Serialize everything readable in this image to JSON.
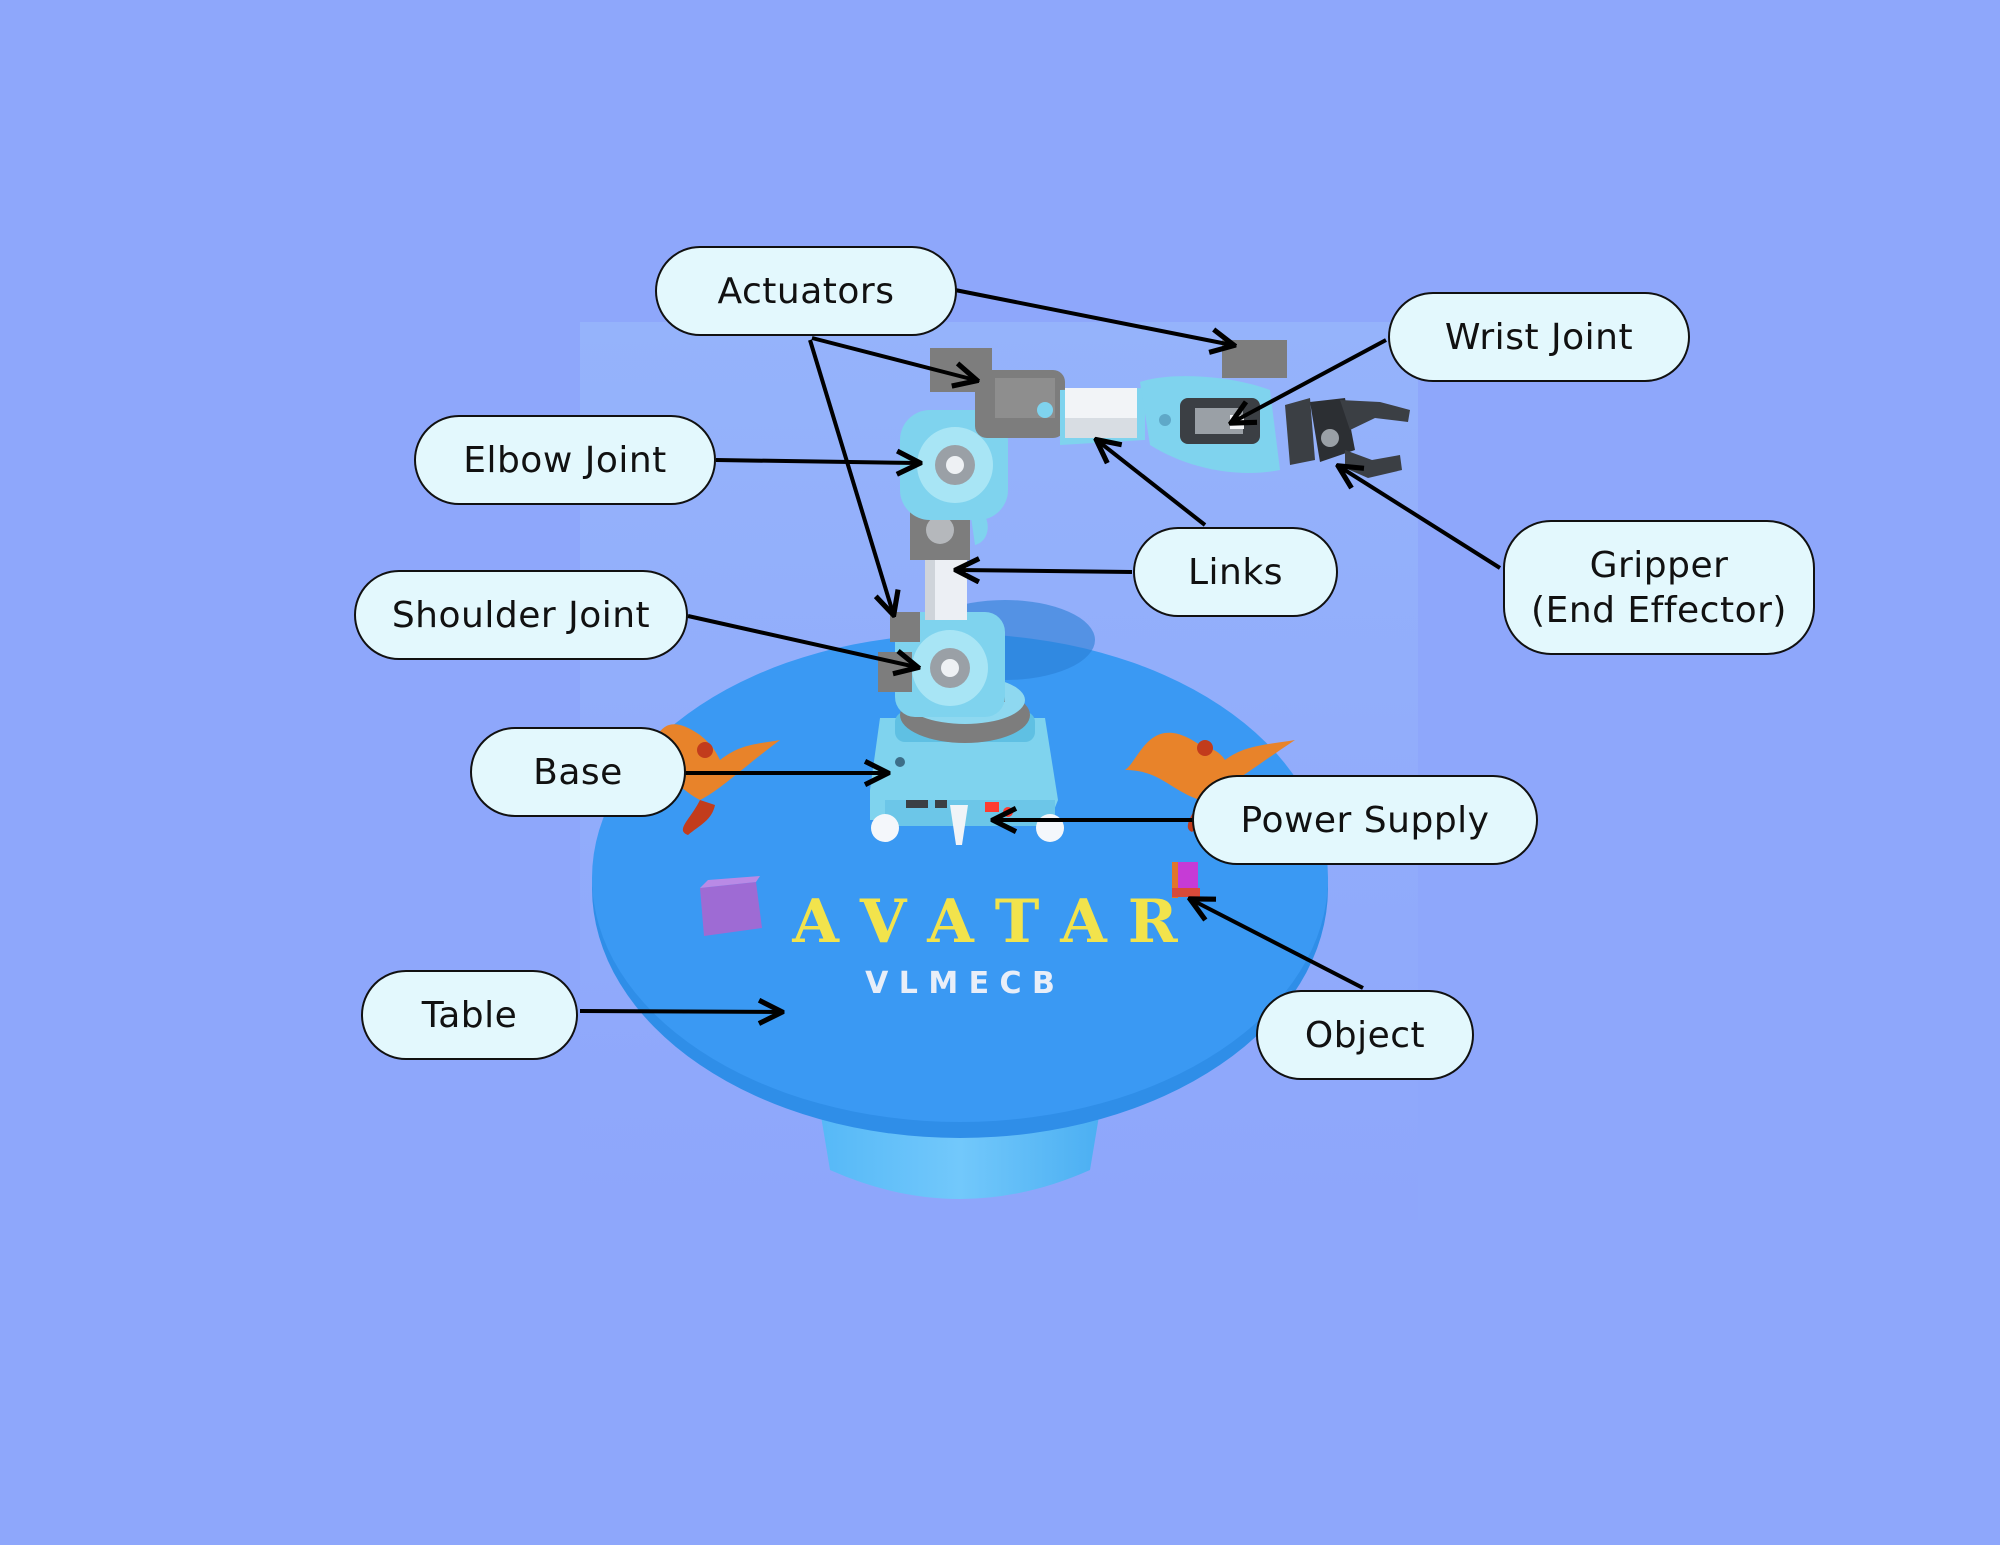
{
  "colors": {
    "background": "#8ea7fb",
    "callout_fill": "#e3f8fd",
    "callout_border": "#111111",
    "table_top": "#3a99f3",
    "robot_body": "#7fd3ee",
    "actuator": "#7d7d7d",
    "brand_text": "#f2e34c",
    "brand_sub": "#e8eef8"
  },
  "labels": {
    "actuators": "Actuators",
    "wrist_joint": "Wrist Joint",
    "elbow_joint": "Elbow Joint",
    "links": "Links",
    "gripper": "Gripper\n(End Effector)",
    "shoulder_joint": "Shoulder Joint",
    "base": "Base",
    "power_supply": "Power Supply",
    "table": "Table",
    "object": "Object"
  },
  "brand": {
    "title": "A V A T A R",
    "subtitle": "V L M E C B"
  }
}
